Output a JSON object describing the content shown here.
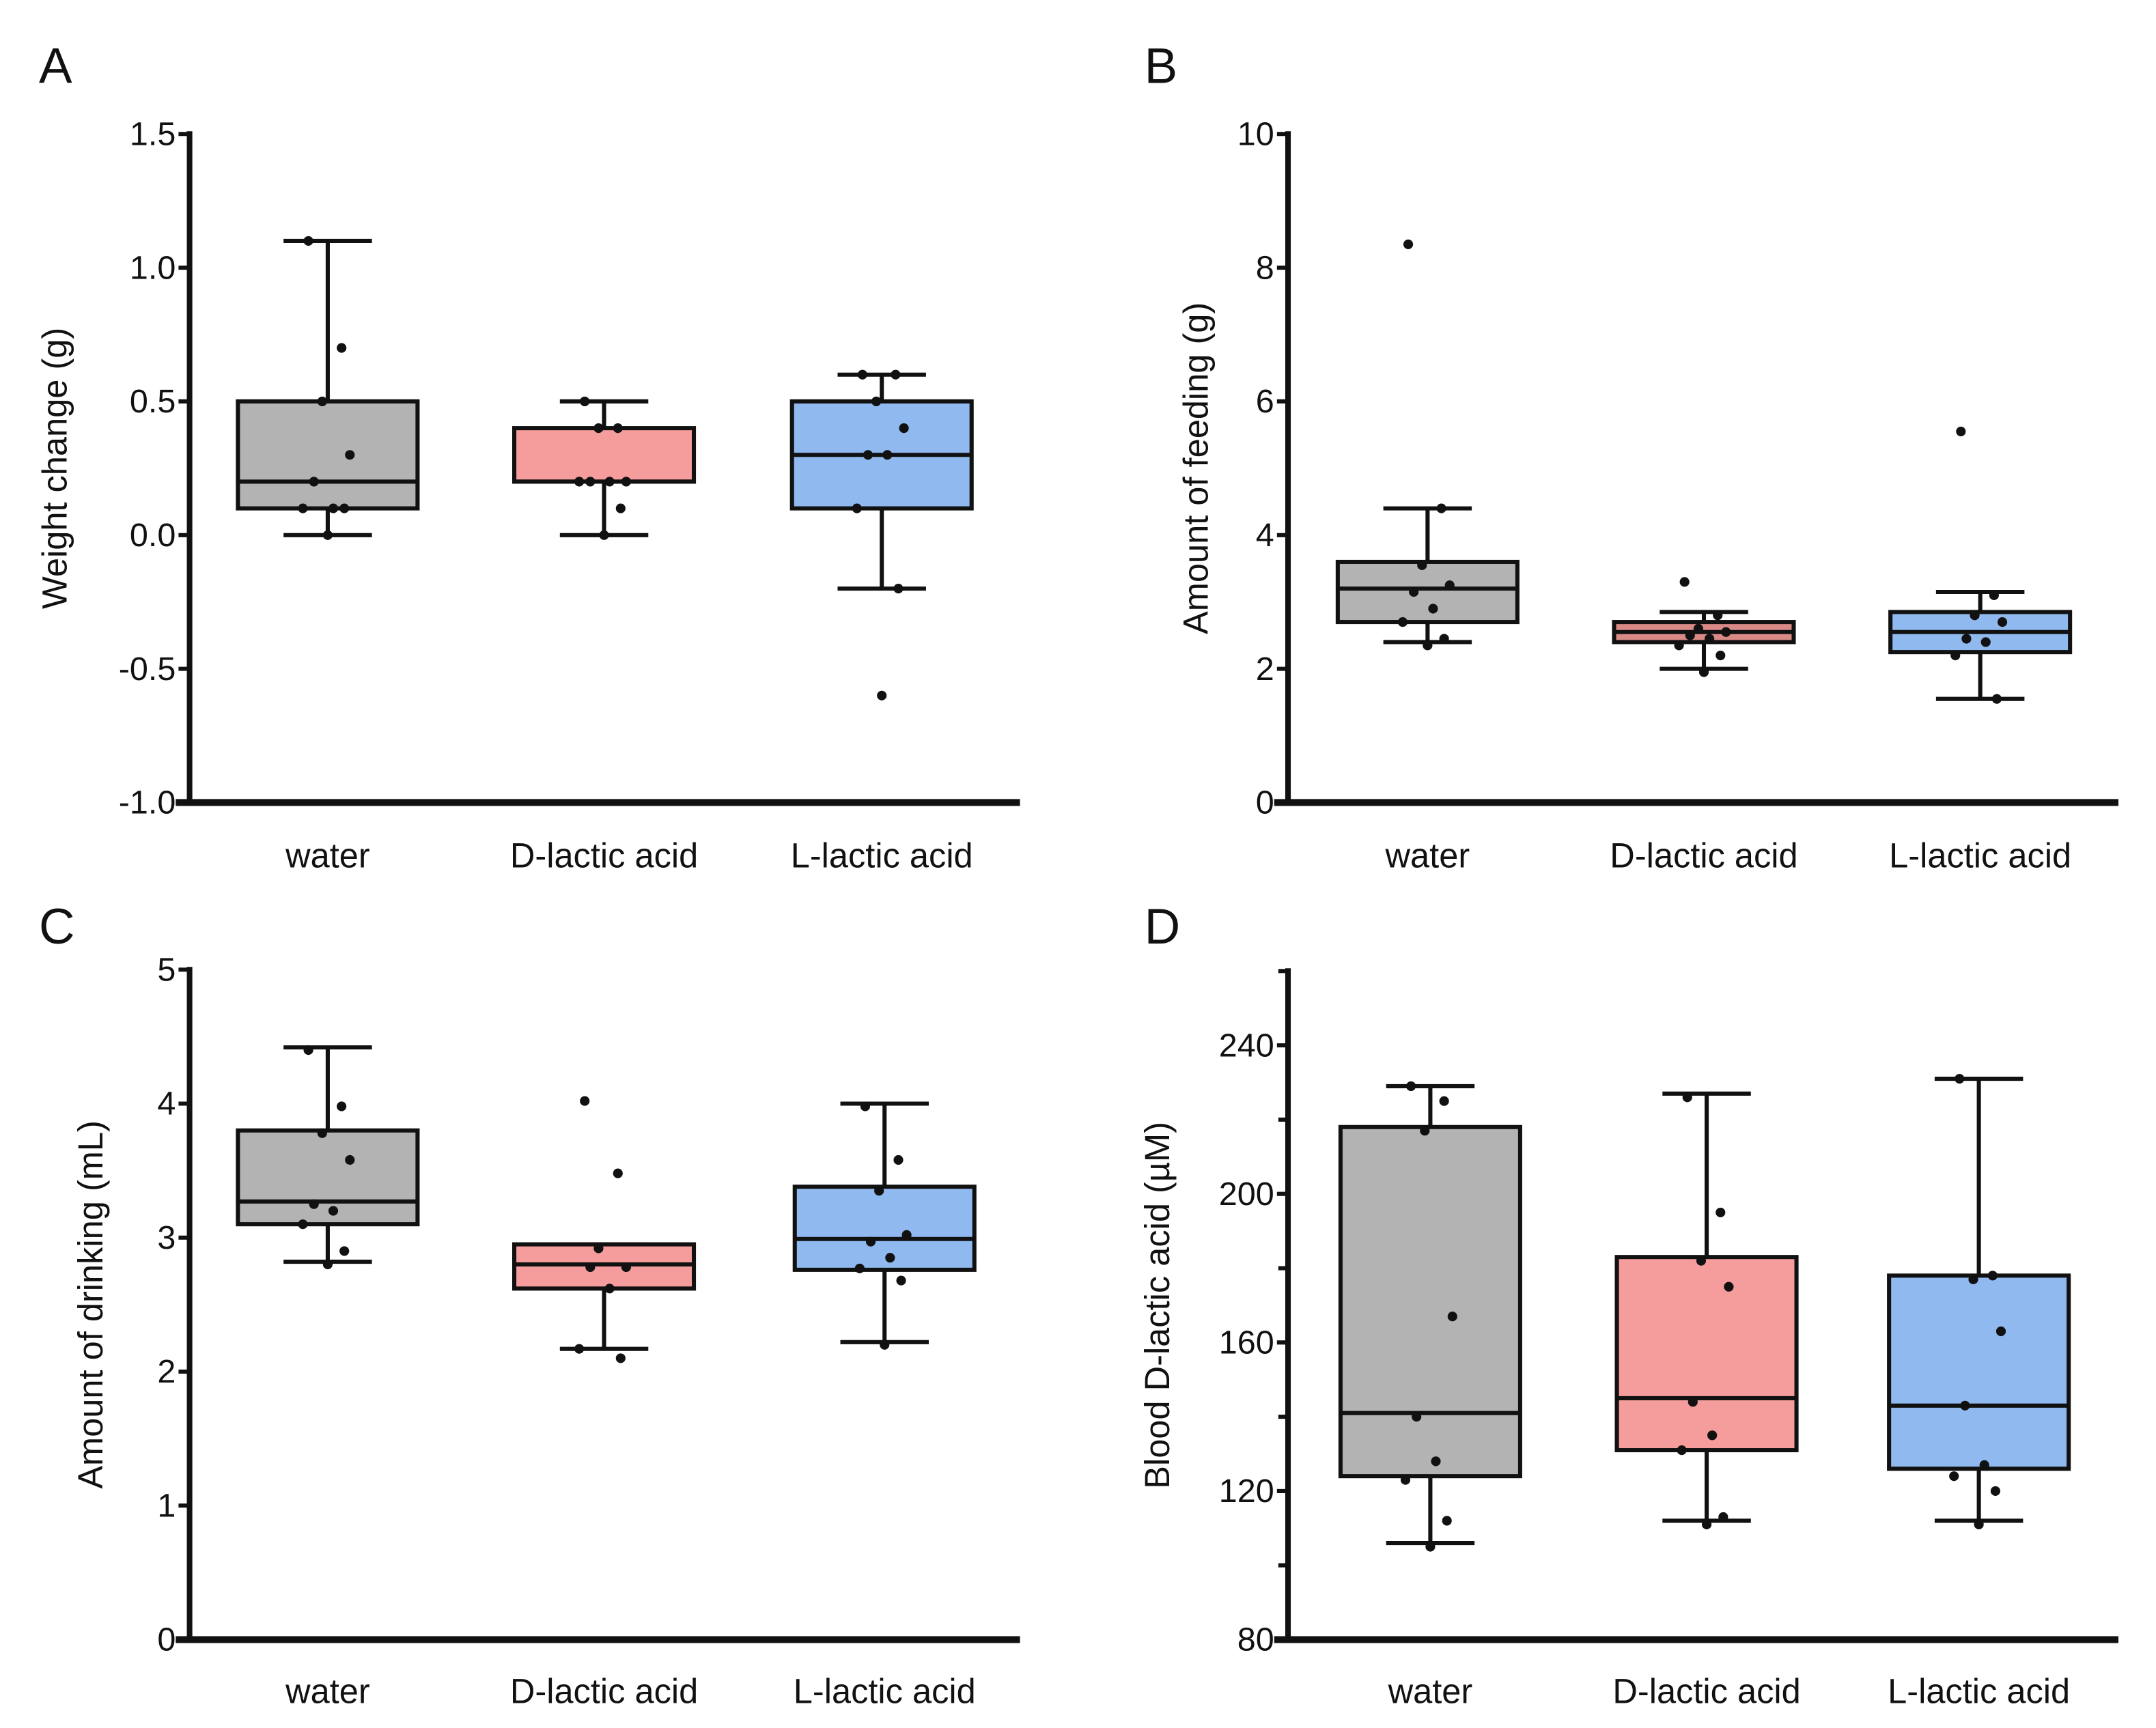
{
  "colors": {
    "water": "#b3b3b3",
    "d_lactic": "#f59c9c",
    "d_lactic_dark": "#d98a86",
    "l_lactic": "#8fb9ef",
    "stroke": "#111111"
  },
  "chart_data": [
    {
      "panel": "A",
      "type": "box",
      "ylabel": "Weight change (g)",
      "ylim": [
        -1.0,
        1.5
      ],
      "yticks": [
        "-1.0",
        "-0.5",
        "0.0",
        "0.5",
        "1.0",
        "1.5"
      ],
      "ytick_values": [
        -1.0,
        -0.5,
        0.0,
        0.5,
        1.0,
        1.5
      ],
      "categories": [
        "water",
        "D-lactic acid",
        "L-lactic acid"
      ],
      "series": [
        {
          "name": "water",
          "whisker_low": 0.0,
          "q1": 0.1,
          "median": 0.2,
          "q3": 0.5,
          "whisker_high": 1.1,
          "points": [
            1.1,
            0.7,
            0.5,
            0.3,
            0.2,
            0.1,
            0.1,
            0.1,
            0.0
          ]
        },
        {
          "name": "D-lactic acid",
          "whisker_low": 0.0,
          "q1": 0.2,
          "median": 0.2,
          "q3": 0.4,
          "whisker_high": 0.5,
          "points": [
            0.5,
            0.4,
            0.4,
            0.2,
            0.2,
            0.2,
            0.2,
            0.1,
            0.0
          ]
        },
        {
          "name": "L-lactic acid",
          "whisker_low": -0.2,
          "q1": 0.1,
          "median": 0.3,
          "q3": 0.5,
          "whisker_high": 0.6,
          "points": [
            0.6,
            0.6,
            0.5,
            0.4,
            0.3,
            0.3,
            0.1,
            -0.2,
            -0.6
          ]
        }
      ]
    },
    {
      "panel": "B",
      "type": "box",
      "ylabel": "Amount of feeding (g)",
      "ylim": [
        0,
        10
      ],
      "yticks": [
        "0",
        "2",
        "4",
        "6",
        "8",
        "10"
      ],
      "ytick_values": [
        0,
        2,
        4,
        6,
        8,
        10
      ],
      "categories": [
        "water",
        "D-lactic acid",
        "L-lactic acid"
      ],
      "series": [
        {
          "name": "water",
          "whisker_low": 2.4,
          "q1": 2.7,
          "median": 3.2,
          "q3": 3.6,
          "whisker_high": 4.4,
          "points": [
            8.35,
            4.4,
            3.55,
            3.25,
            3.15,
            2.9,
            2.7,
            2.45,
            2.35
          ]
        },
        {
          "name": "D-lactic acid",
          "whisker_low": 2.0,
          "q1": 2.4,
          "median": 2.55,
          "q3": 2.7,
          "whisker_high": 2.85,
          "points": [
            3.3,
            2.8,
            2.6,
            2.55,
            2.5,
            2.45,
            2.35,
            2.2,
            1.95
          ]
        },
        {
          "name": "L-lactic acid",
          "whisker_low": 1.55,
          "q1": 2.25,
          "median": 2.55,
          "q3": 2.85,
          "whisker_high": 3.15,
          "points": [
            5.55,
            3.1,
            2.8,
            2.7,
            2.45,
            2.4,
            2.2,
            1.55
          ]
        }
      ]
    },
    {
      "panel": "C",
      "type": "box",
      "ylabel": "Amount of drinking (mL)",
      "ylim": [
        0,
        5
      ],
      "yticks": [
        "0",
        "1",
        "2",
        "3",
        "4",
        "5"
      ],
      "ytick_values": [
        0,
        1,
        2,
        3,
        4,
        5
      ],
      "categories": [
        "water",
        "D-lactic acid",
        "L-lactic acid"
      ],
      "series": [
        {
          "name": "water",
          "whisker_low": 2.82,
          "q1": 3.1,
          "median": 3.27,
          "q3": 3.8,
          "whisker_high": 4.42,
          "points": [
            4.4,
            3.98,
            3.78,
            3.58,
            3.25,
            3.2,
            3.1,
            2.9,
            2.8
          ]
        },
        {
          "name": "D-lactic acid",
          "whisker_low": 2.17,
          "q1": 2.62,
          "median": 2.8,
          "q3": 2.95,
          "whisker_high": 2.95,
          "points": [
            4.02,
            3.48,
            2.92,
            2.78,
            2.78,
            2.62,
            2.17,
            2.1
          ]
        },
        {
          "name": "L-lactic acid",
          "whisker_low": 2.22,
          "q1": 2.76,
          "median": 2.99,
          "q3": 3.38,
          "whisker_high": 4.0,
          "points": [
            3.98,
            3.58,
            3.35,
            3.02,
            2.97,
            2.85,
            2.77,
            2.68,
            2.2
          ]
        }
      ]
    },
    {
      "panel": "D",
      "type": "box",
      "ylabel": "Blood D-lactic acid (µM)",
      "ylim": [
        80,
        260
      ],
      "yticks": [
        "80",
        "120",
        "160",
        "200",
        "240"
      ],
      "ytick_values": [
        80,
        120,
        160,
        200,
        240
      ],
      "minor_ticks": [
        100,
        140,
        180,
        220,
        260
      ],
      "categories": [
        "water",
        "D-lactic acid",
        "L-lactic acid"
      ],
      "series": [
        {
          "name": "water",
          "whisker_low": 106,
          "q1": 124,
          "median": 141,
          "q3": 218,
          "whisker_high": 229,
          "points": [
            229,
            225,
            217,
            167,
            140,
            128,
            123,
            112,
            105
          ]
        },
        {
          "name": "D-lactic acid",
          "whisker_low": 112,
          "q1": 131,
          "median": 145,
          "q3": 183,
          "whisker_high": 227,
          "points": [
            226,
            195,
            182,
            175,
            144,
            135,
            131,
            113,
            111
          ]
        },
        {
          "name": "L-lactic acid",
          "whisker_low": 112,
          "q1": 126,
          "median": 143,
          "q3": 178,
          "whisker_high": 231,
          "points": [
            231,
            178,
            177,
            163,
            143,
            127,
            124,
            120,
            111
          ]
        }
      ]
    }
  ]
}
